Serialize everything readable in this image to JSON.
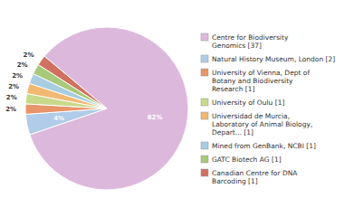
{
  "chart_data": {
    "type": "pie",
    "categories": [
      "Centre for Biodiversity\nGenomics [37]",
      "Natural History Museum, London [2]",
      "University of Vienna, Dept of\nBotany and Biodiversity\nResearch [1]",
      "University of Oulu [1]",
      "Universidad de Murcia,\nLaboratory of Animal Biology,\nDepart... [1]",
      "Mined from GenBank, NCBI [1]",
      "GATC Biotech AG [1]",
      "Canadian Centre for DNA\nBarcoding [1]"
    ],
    "values": [
      82,
      4,
      2,
      2,
      2,
      2,
      2,
      2
    ],
    "value_labels": [
      "82%",
      "4%",
      "2%",
      "2%",
      "2%",
      "2%",
      "2%",
      "2%"
    ],
    "colors": [
      "#ddb8dd",
      "#b0cce8",
      "#e8956a",
      "#c8d98a",
      "#f0b870",
      "#a8cce0",
      "#a8c87a",
      "#d07060"
    ],
    "data_labels": true,
    "legend": "right"
  }
}
